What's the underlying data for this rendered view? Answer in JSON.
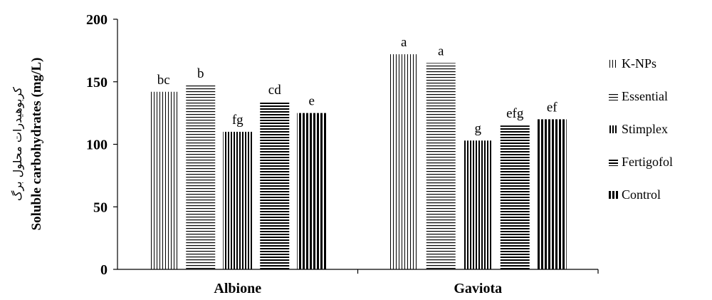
{
  "chart_data": {
    "type": "bar",
    "categories": [
      "Albione",
      "Gaviota"
    ],
    "series": [
      {
        "name": "K-NPs",
        "values": [
          142,
          172
        ],
        "labels": [
          "bc",
          "a"
        ],
        "pattern": "vertical-thin"
      },
      {
        "name": "Essential",
        "values": [
          147,
          165
        ],
        "labels": [
          "b",
          "a"
        ],
        "pattern": "horizontal-thin"
      },
      {
        "name": "Stimplex",
        "values": [
          110,
          103
        ],
        "labels": [
          "fg",
          "g"
        ],
        "pattern": "vertical-medium"
      },
      {
        "name": "Fertigofol",
        "values": [
          134,
          115
        ],
        "labels": [
          "cd",
          "efg"
        ],
        "pattern": "horizontal-medium"
      },
      {
        "name": "Control",
        "values": [
          125,
          120
        ],
        "labels": [
          "e",
          "ef"
        ],
        "pattern": "vertical-thick"
      }
    ],
    "ylabel": "Soluble carbohydrates (mg/L)",
    "ylabel_secondary": "کربوهیدرات محلول برگ",
    "xlabel": "",
    "ylim": [
      0,
      200
    ],
    "yticks": [
      0,
      50,
      100,
      150,
      200
    ],
    "grid": false,
    "legend_position": "right"
  }
}
